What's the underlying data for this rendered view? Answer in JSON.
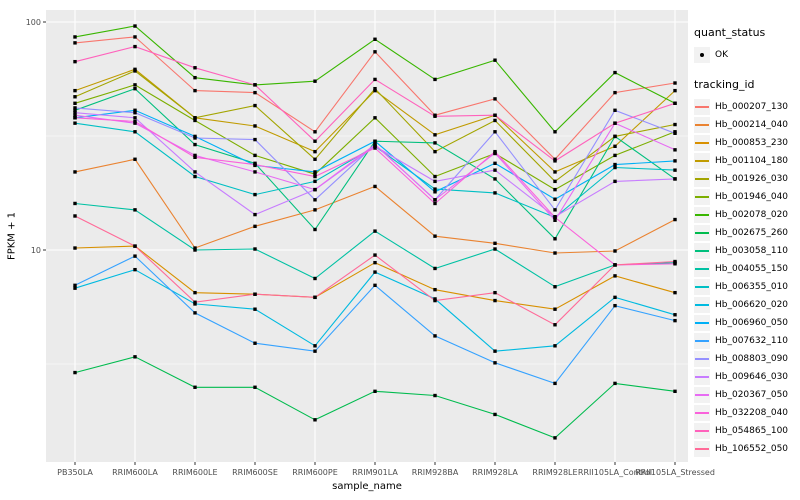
{
  "figure": {
    "x_axis_title": "sample_name",
    "y_axis_title": "FPKM + 1",
    "y_tick_labels": [
      "100",
      "10"
    ],
    "legend": {
      "quant_status_title": "quant_status",
      "quant_status_items": [
        {
          "label": "OK",
          "marker": "point",
          "color": "#000000"
        }
      ],
      "tracking_id_title": "tracking_id"
    },
    "colors": {
      "panel_background": "#EBEBEB",
      "gridline": "#FFFFFF",
      "point": "#000000",
      "tick_text": "#4D4D4D",
      "legend_key_background": "#F2F2F2"
    }
  },
  "chart_data": {
    "type": "line",
    "title": "",
    "xlabel": "sample_name",
    "ylabel": "FPKM + 1",
    "y_scale": "log10",
    "ylim": [
      1.15,
      112
    ],
    "y_major_ticks": [
      100,
      10
    ],
    "y_minor_gridlines": [
      31.62,
      3.162
    ],
    "grid": true,
    "legend_position": "right",
    "point_marker": "filled-square",
    "categories": [
      "PB350LA",
      "RRIM600LA",
      "RRIM600LE",
      "RRIM600SE",
      "RRIM600PE",
      "RRIM901LA",
      "RRIM928BA",
      "RRIM928LA",
      "RRIM928LE",
      "RRII105LA_Control",
      "RRII105LA_Stressed"
    ],
    "series": [
      {
        "name": "Hb_000207_130",
        "color": "#F8766D",
        "values": [
          81,
          86,
          50,
          49,
          33,
          74,
          39,
          46,
          25,
          49,
          54
        ]
      },
      {
        "name": "Hb_000214_040",
        "color": "#EA8331",
        "values": [
          22,
          25,
          10.2,
          12.7,
          15,
          19,
          11.5,
          10.7,
          9.7,
          9.9,
          13.6
        ]
      },
      {
        "name": "Hb_000853_230",
        "color": "#D89000",
        "values": [
          10.2,
          10.4,
          6.5,
          6.4,
          6.2,
          8.8,
          6.7,
          6.0,
          5.5,
          7.7,
          6.5
        ]
      },
      {
        "name": "Hb_001104_180",
        "color": "#C09B00",
        "values": [
          50,
          62,
          38,
          35,
          27,
          50,
          32,
          39,
          22,
          28.5,
          50
        ]
      },
      {
        "name": "Hb_001926_030",
        "color": "#A3A500",
        "values": [
          47,
          61,
          38,
          43,
          25,
          51,
          27,
          37,
          20,
          31.5,
          35.5
        ]
      },
      {
        "name": "Hb_001946_040",
        "color": "#7CAE00",
        "values": [
          44,
          53,
          37,
          26,
          21.5,
          38,
          21,
          26.5,
          18.4,
          26,
          33
        ]
      },
      {
        "name": "Hb_002078_020",
        "color": "#39B600",
        "values": [
          86,
          96,
          57,
          53,
          55,
          84,
          56,
          68,
          33,
          60,
          44
        ]
      },
      {
        "name": "Hb_002675_260",
        "color": "#00BB4E",
        "values": [
          2.9,
          3.4,
          2.5,
          2.5,
          1.8,
          2.4,
          2.3,
          1.9,
          1.5,
          2.6,
          2.4
        ]
      },
      {
        "name": "Hb_003058_110",
        "color": "#00BF7D",
        "values": [
          41,
          51,
          29,
          24,
          12.3,
          30,
          29.5,
          20.5,
          11.2,
          31.5,
          20.5
        ]
      },
      {
        "name": "Hb_004055_150",
        "color": "#00C1A3",
        "values": [
          16,
          15,
          10,
          10.1,
          7.5,
          12.1,
          8.3,
          10.1,
          6.9,
          8.6,
          8.8
        ]
      },
      {
        "name": "Hb_006355_010",
        "color": "#00BFC4",
        "values": [
          36,
          33,
          21,
          17.5,
          20,
          28.5,
          18.5,
          17.8,
          13.9,
          23,
          22.4
        ]
      },
      {
        "name": "Hb_006620_020",
        "color": "#00BAE0",
        "values": [
          6.8,
          8.2,
          5.8,
          5.5,
          3.8,
          8.0,
          6.1,
          3.6,
          3.8,
          6.2,
          5.2
        ]
      },
      {
        "name": "Hb_006960_050",
        "color": "#00B0F6",
        "values": [
          38,
          41,
          31.5,
          23.5,
          22,
          30,
          18,
          24,
          16.7,
          23.7,
          24.6
        ]
      },
      {
        "name": "Hb_007632_110",
        "color": "#35A2FF",
        "values": [
          7.0,
          9.4,
          5.3,
          3.9,
          3.6,
          7.0,
          4.2,
          3.2,
          2.6,
          5.7,
          4.9
        ]
      },
      {
        "name": "Hb_008803_090",
        "color": "#9590FF",
        "values": [
          42,
          40,
          31,
          30.5,
          16.6,
          29,
          16.6,
          33,
          15,
          41,
          32.5
        ]
      },
      {
        "name": "Hb_009646_030",
        "color": "#C77CFF",
        "values": [
          40,
          38,
          22,
          14.3,
          18.4,
          28.5,
          20,
          22.4,
          14,
          20,
          20.5
        ]
      },
      {
        "name": "Hb_020367_050",
        "color": "#E76BF3",
        "values": [
          39,
          36,
          26,
          22,
          18.4,
          29,
          16.6,
          26.6,
          13.5,
          36,
          27.5
        ]
      },
      {
        "name": "Hb_032208_040",
        "color": "#FA62DB",
        "values": [
          38,
          36.6,
          25.5,
          23.7,
          21,
          28,
          16,
          27,
          13.9,
          8.6,
          8.7
        ]
      },
      {
        "name": "Hb_054865_100",
        "color": "#FF62BC",
        "values": [
          67,
          78,
          63,
          53,
          30,
          56,
          38.6,
          39,
          24.6,
          36,
          44
        ]
      },
      {
        "name": "Hb_106552_050",
        "color": "#FF6A98",
        "values": [
          14.1,
          10.4,
          5.9,
          6.4,
          6.2,
          9.5,
          6.0,
          6.5,
          4.7,
          8.6,
          8.9
        ]
      }
    ]
  }
}
